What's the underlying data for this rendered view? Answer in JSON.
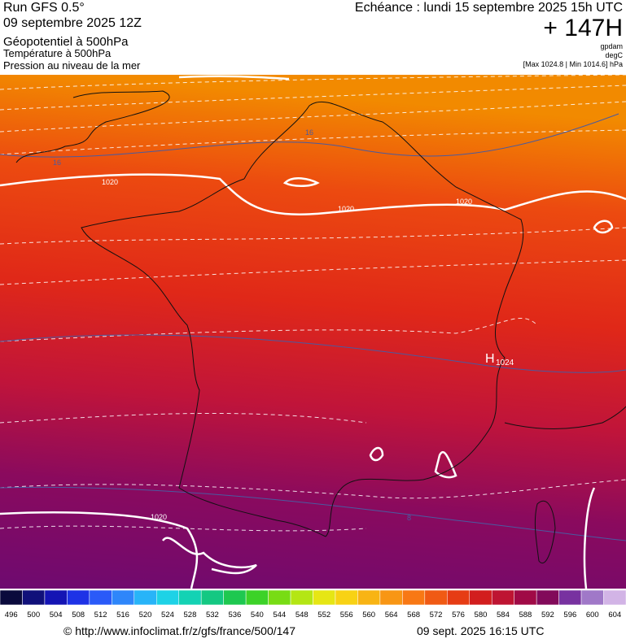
{
  "header": {
    "run": "Run GFS 0.5°",
    "date": "09 septembre 2025 12Z",
    "fields": [
      "Géopotentiel à 500hPa",
      "Température à 500hPa",
      "Pression au niveau de la mer"
    ],
    "echeance": "Echéance : lundi 15 septembre 2025 15h UTC",
    "lead": "+ 147H",
    "units": [
      "gpdam",
      "degC"
    ],
    "range": "[Max 1024.8 | Min 1014.6] hPa"
  },
  "map": {
    "labels": [
      "1020",
      "1020",
      "1020",
      "1020",
      "16",
      "16",
      "8",
      "H",
      "1024"
    ]
  },
  "colorbar": {
    "values": [
      496,
      500,
      504,
      508,
      512,
      516,
      520,
      524,
      528,
      532,
      536,
      540,
      544,
      548,
      552,
      556,
      560,
      564,
      568,
      572,
      576,
      580,
      584,
      588,
      592,
      596,
      600,
      604
    ],
    "colors": [
      "#0a0a3c",
      "#10107a",
      "#1414b4",
      "#1e32e6",
      "#2a5af8",
      "#2e86fa",
      "#28b4f8",
      "#1ed2e6",
      "#14d2b4",
      "#14c882",
      "#1ec850",
      "#3cd228",
      "#78dc14",
      "#b4e614",
      "#e6e614",
      "#f8d214",
      "#f8b414",
      "#f89614",
      "#f87814",
      "#f05a14",
      "#e63c14",
      "#d21e1e",
      "#be1432",
      "#a00a46",
      "#820a5a",
      "#7832a0",
      "#a078c8",
      "#d2b4e6"
    ]
  },
  "footer": {
    "url": "© http://www.infoclimat.fr/z/gfs/france/500/147",
    "time": "09 sept. 2025 16:15 UTC"
  }
}
